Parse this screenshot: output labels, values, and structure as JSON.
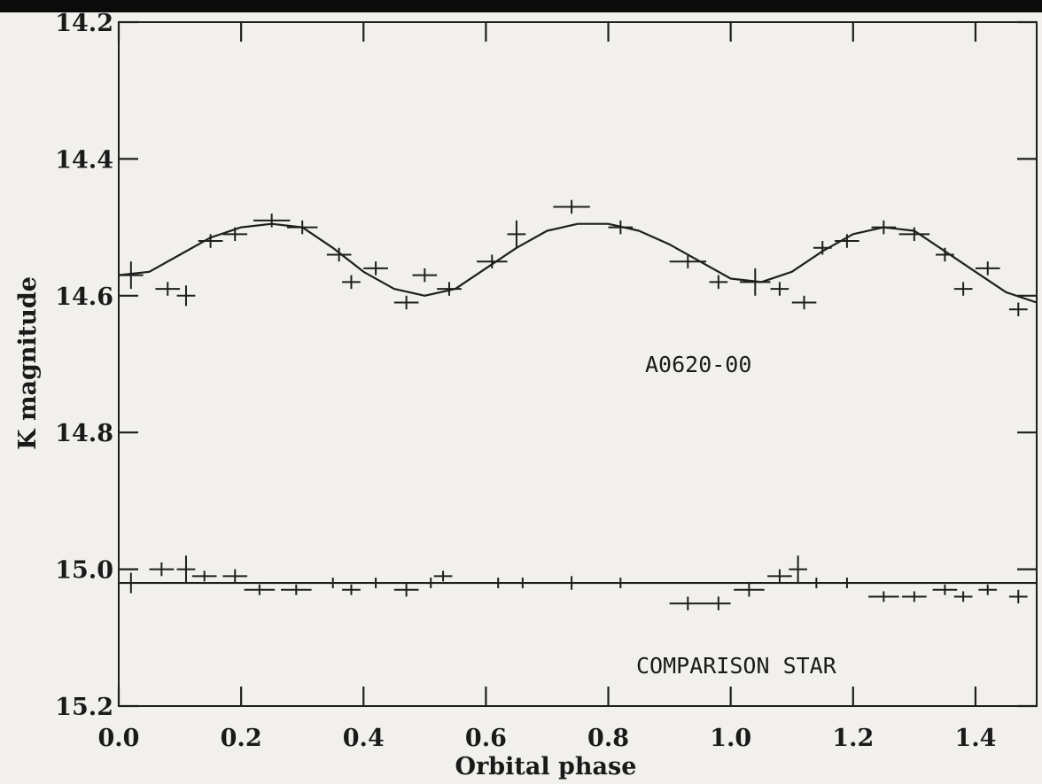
{
  "chart_data": {
    "type": "scatter",
    "xlabel": "Orbital phase",
    "ylabel": "K magnitude",
    "xlim": [
      0.0,
      1.5
    ],
    "ylim": [
      15.2,
      14.2
    ],
    "y_inverted": true,
    "grid": false,
    "x_ticks": [
      "0.0",
      "0.2",
      "0.4",
      "0.6",
      "0.8",
      "1.0",
      "1.2",
      "1.4"
    ],
    "x_tick_values": [
      0.0,
      0.2,
      0.4,
      0.6,
      0.8,
      1.0,
      1.2,
      1.4
    ],
    "y_ticks": [
      "14.2",
      "14.4",
      "14.6",
      "14.8",
      "15.0",
      "15.2"
    ],
    "y_tick_values": [
      14.2,
      14.4,
      14.6,
      14.8,
      15.0,
      15.2
    ],
    "annotations": [
      "A0620-00",
      "COMPARISON STAR"
    ],
    "series": [
      {
        "label": "A0620-00",
        "marker": "errorbar-cross",
        "points": [
          {
            "x": 0.02,
            "y": 14.57,
            "xerr": 0.02,
            "yerr": 0.02
          },
          {
            "x": 0.08,
            "y": 14.59,
            "xerr": 0.02,
            "yerr": 0.01
          },
          {
            "x": 0.11,
            "y": 14.6,
            "xerr": 0.015,
            "yerr": 0.015
          },
          {
            "x": 0.15,
            "y": 14.52,
            "xerr": 0.02,
            "yerr": 0.01
          },
          {
            "x": 0.19,
            "y": 14.51,
            "xerr": 0.02,
            "yerr": 0.01
          },
          {
            "x": 0.25,
            "y": 14.49,
            "xerr": 0.03,
            "yerr": 0.01
          },
          {
            "x": 0.3,
            "y": 14.5,
            "xerr": 0.025,
            "yerr": 0.01
          },
          {
            "x": 0.36,
            "y": 14.54,
            "xerr": 0.02,
            "yerr": 0.01
          },
          {
            "x": 0.38,
            "y": 14.58,
            "xerr": 0.015,
            "yerr": 0.01
          },
          {
            "x": 0.42,
            "y": 14.56,
            "xerr": 0.02,
            "yerr": 0.01
          },
          {
            "x": 0.47,
            "y": 14.61,
            "xerr": 0.02,
            "yerr": 0.01
          },
          {
            "x": 0.5,
            "y": 14.57,
            "xerr": 0.02,
            "yerr": 0.01
          },
          {
            "x": 0.54,
            "y": 14.59,
            "xerr": 0.02,
            "yerr": 0.01
          },
          {
            "x": 0.61,
            "y": 14.55,
            "xerr": 0.025,
            "yerr": 0.01
          },
          {
            "x": 0.65,
            "y": 14.51,
            "xerr": 0.015,
            "yerr": 0.02
          },
          {
            "x": 0.74,
            "y": 14.47,
            "xerr": 0.03,
            "yerr": 0.01
          },
          {
            "x": 0.82,
            "y": 14.5,
            "xerr": 0.02,
            "yerr": 0.01
          },
          {
            "x": 0.93,
            "y": 14.55,
            "xerr": 0.03,
            "yerr": 0.01
          },
          {
            "x": 0.98,
            "y": 14.58,
            "xerr": 0.015,
            "yerr": 0.01
          },
          {
            "x": 1.04,
            "y": 14.58,
            "xerr": 0.025,
            "yerr": 0.02
          },
          {
            "x": 1.08,
            "y": 14.59,
            "xerr": 0.015,
            "yerr": 0.01
          },
          {
            "x": 1.12,
            "y": 14.61,
            "xerr": 0.02,
            "yerr": 0.01
          },
          {
            "x": 1.15,
            "y": 14.53,
            "xerr": 0.015,
            "yerr": 0.01
          },
          {
            "x": 1.19,
            "y": 14.52,
            "xerr": 0.02,
            "yerr": 0.01
          },
          {
            "x": 1.25,
            "y": 14.5,
            "xerr": 0.02,
            "yerr": 0.01
          },
          {
            "x": 1.3,
            "y": 14.51,
            "xerr": 0.025,
            "yerr": 0.01
          },
          {
            "x": 1.35,
            "y": 14.54,
            "xerr": 0.015,
            "yerr": 0.01
          },
          {
            "x": 1.38,
            "y": 14.59,
            "xerr": 0.015,
            "yerr": 0.01
          },
          {
            "x": 1.42,
            "y": 14.56,
            "xerr": 0.02,
            "yerr": 0.01
          },
          {
            "x": 1.47,
            "y": 14.62,
            "xerr": 0.015,
            "yerr": 0.01
          }
        ],
        "fit_curve": [
          [
            0.0,
            14.57
          ],
          [
            0.05,
            14.565
          ],
          [
            0.1,
            14.54
          ],
          [
            0.15,
            14.515
          ],
          [
            0.2,
            14.5
          ],
          [
            0.25,
            14.495
          ],
          [
            0.3,
            14.5
          ],
          [
            0.35,
            14.53
          ],
          [
            0.4,
            14.565
          ],
          [
            0.45,
            14.59
          ],
          [
            0.5,
            14.6
          ],
          [
            0.55,
            14.59
          ],
          [
            0.6,
            14.56
          ],
          [
            0.65,
            14.53
          ],
          [
            0.7,
            14.505
          ],
          [
            0.75,
            14.495
          ],
          [
            0.8,
            14.495
          ],
          [
            0.85,
            14.505
          ],
          [
            0.9,
            14.525
          ],
          [
            0.95,
            14.55
          ],
          [
            1.0,
            14.575
          ],
          [
            1.05,
            14.58
          ],
          [
            1.1,
            14.565
          ],
          [
            1.15,
            14.535
          ],
          [
            1.2,
            14.51
          ],
          [
            1.25,
            14.5
          ],
          [
            1.3,
            14.505
          ],
          [
            1.35,
            14.535
          ],
          [
            1.4,
            14.565
          ],
          [
            1.45,
            14.595
          ],
          [
            1.5,
            14.61
          ]
        ]
      },
      {
        "label": "COMPARISON STAR",
        "marker": "errorbar-cross",
        "points": [
          {
            "x": 0.02,
            "y": 15.02,
            "xerr": 0.02,
            "yerr": 0.015
          },
          {
            "x": 0.07,
            "y": 15.0,
            "xerr": 0.02,
            "yerr": 0.01
          },
          {
            "x": 0.11,
            "y": 15.0,
            "xerr": 0.015,
            "yerr": 0.02
          },
          {
            "x": 0.14,
            "y": 15.01,
            "xerr": 0.02,
            "yerr": 0.005
          },
          {
            "x": 0.19,
            "y": 15.01,
            "xerr": 0.02,
            "yerr": 0.01
          },
          {
            "x": 0.23,
            "y": 15.03,
            "xerr": 0.025,
            "yerr": 0.005
          },
          {
            "x": 0.29,
            "y": 15.03,
            "xerr": 0.025,
            "yerr": 0.005
          },
          {
            "x": 0.35,
            "y": 15.02,
            "xerr": 0.02,
            "yerr": 0.005
          },
          {
            "x": 0.38,
            "y": 15.03,
            "xerr": 0.015,
            "yerr": 0.005
          },
          {
            "x": 0.42,
            "y": 15.02,
            "xerr": 0.02,
            "yerr": 0.005
          },
          {
            "x": 0.47,
            "y": 15.03,
            "xerr": 0.02,
            "yerr": 0.01
          },
          {
            "x": 0.51,
            "y": 15.02,
            "xerr": 0.015,
            "yerr": 0.005
          },
          {
            "x": 0.53,
            "y": 15.01,
            "xerr": 0.015,
            "yerr": 0.005
          },
          {
            "x": 0.62,
            "y": 15.02,
            "xerr": 0.03,
            "yerr": 0.005
          },
          {
            "x": 0.66,
            "y": 15.02,
            "xerr": 0.02,
            "yerr": 0.005
          },
          {
            "x": 0.74,
            "y": 15.02,
            "xerr": 0.04,
            "yerr": 0.01
          },
          {
            "x": 0.82,
            "y": 15.02,
            "xerr": 0.03,
            "yerr": 0.005
          },
          {
            "x": 0.93,
            "y": 15.05,
            "xerr": 0.03,
            "yerr": 0.01
          },
          {
            "x": 0.98,
            "y": 15.05,
            "xerr": 0.02,
            "yerr": 0.01
          },
          {
            "x": 1.03,
            "y": 15.03,
            "xerr": 0.025,
            "yerr": 0.01
          },
          {
            "x": 1.08,
            "y": 15.01,
            "xerr": 0.02,
            "yerr": 0.01
          },
          {
            "x": 1.11,
            "y": 15.0,
            "xerr": 0.015,
            "yerr": 0.02
          },
          {
            "x": 1.14,
            "y": 15.02,
            "xerr": 0.02,
            "yerr": 0.005
          },
          {
            "x": 1.19,
            "y": 15.02,
            "xerr": 0.015,
            "yerr": 0.005
          },
          {
            "x": 1.25,
            "y": 15.04,
            "xerr": 0.025,
            "yerr": 0.005
          },
          {
            "x": 1.3,
            "y": 15.04,
            "xerr": 0.02,
            "yerr": 0.005
          },
          {
            "x": 1.35,
            "y": 15.03,
            "xerr": 0.02,
            "yerr": 0.005
          },
          {
            "x": 1.38,
            "y": 15.04,
            "xerr": 0.015,
            "yerr": 0.005
          },
          {
            "x": 1.42,
            "y": 15.03,
            "xerr": 0.015,
            "yerr": 0.005
          },
          {
            "x": 1.47,
            "y": 15.04,
            "xerr": 0.015,
            "yerr": 0.01
          }
        ],
        "fit_line": {
          "y": 15.02
        }
      }
    ]
  }
}
